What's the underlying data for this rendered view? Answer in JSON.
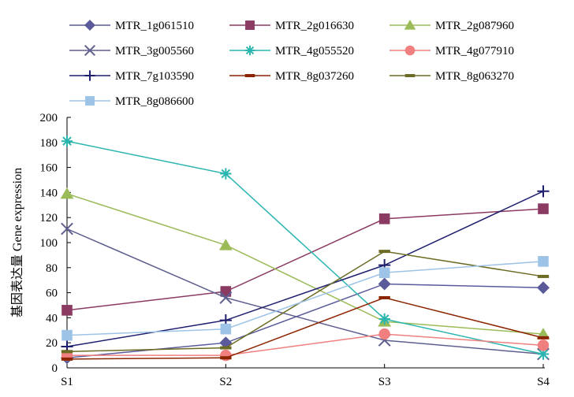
{
  "chart_data": {
    "type": "line",
    "title": "",
    "xlabel": "",
    "ylabel": "基因表达量 Gene expression",
    "categories": [
      "S1",
      "S2",
      "S3",
      "S4"
    ],
    "ylim": [
      0,
      200
    ],
    "yticks": [
      "0",
      "20",
      "40",
      "60",
      "80",
      "100",
      "120",
      "140",
      "160",
      "180",
      "200"
    ],
    "grid": false,
    "legend_position": "top",
    "series": [
      {
        "name": "MTR_1g061510",
        "values": [
          8,
          20,
          67,
          64
        ],
        "color": "#5a5a9a",
        "marker": "diamond"
      },
      {
        "name": "MTR_2g016630",
        "values": [
          46,
          61,
          119,
          127
        ],
        "color": "#8b3a62",
        "marker": "square"
      },
      {
        "name": "MTR_2g087960",
        "values": [
          139,
          98,
          37,
          27
        ],
        "color": "#9bbb59",
        "marker": "triangle"
      },
      {
        "name": "MTR_3g005560",
        "values": [
          111,
          56,
          22,
          11
        ],
        "color": "#5f5f8f",
        "marker": "x"
      },
      {
        "name": "MTR_4g055520",
        "values": [
          181,
          155,
          39,
          11
        ],
        "color": "#2bb5b0",
        "marker": "asterisk"
      },
      {
        "name": "MTR_4g077910",
        "values": [
          10,
          10,
          27,
          18
        ],
        "color": "#f07f7f",
        "marker": "circle"
      },
      {
        "name": "MTR_7g103590",
        "values": [
          17,
          38,
          82,
          141
        ],
        "color": "#1f1f6f",
        "marker": "plus"
      },
      {
        "name": "MTR_8g037260",
        "values": [
          7,
          8,
          56,
          24
        ],
        "color": "#8b2500",
        "marker": "dash"
      },
      {
        "name": "MTR_8g063270",
        "values": [
          13,
          16,
          93,
          73
        ],
        "color": "#6b6b23",
        "marker": "dash"
      },
      {
        "name": "MTR_8g086600",
        "values": [
          26,
          31,
          76,
          85
        ],
        "color": "#9dc3e6",
        "marker": "square"
      }
    ]
  }
}
